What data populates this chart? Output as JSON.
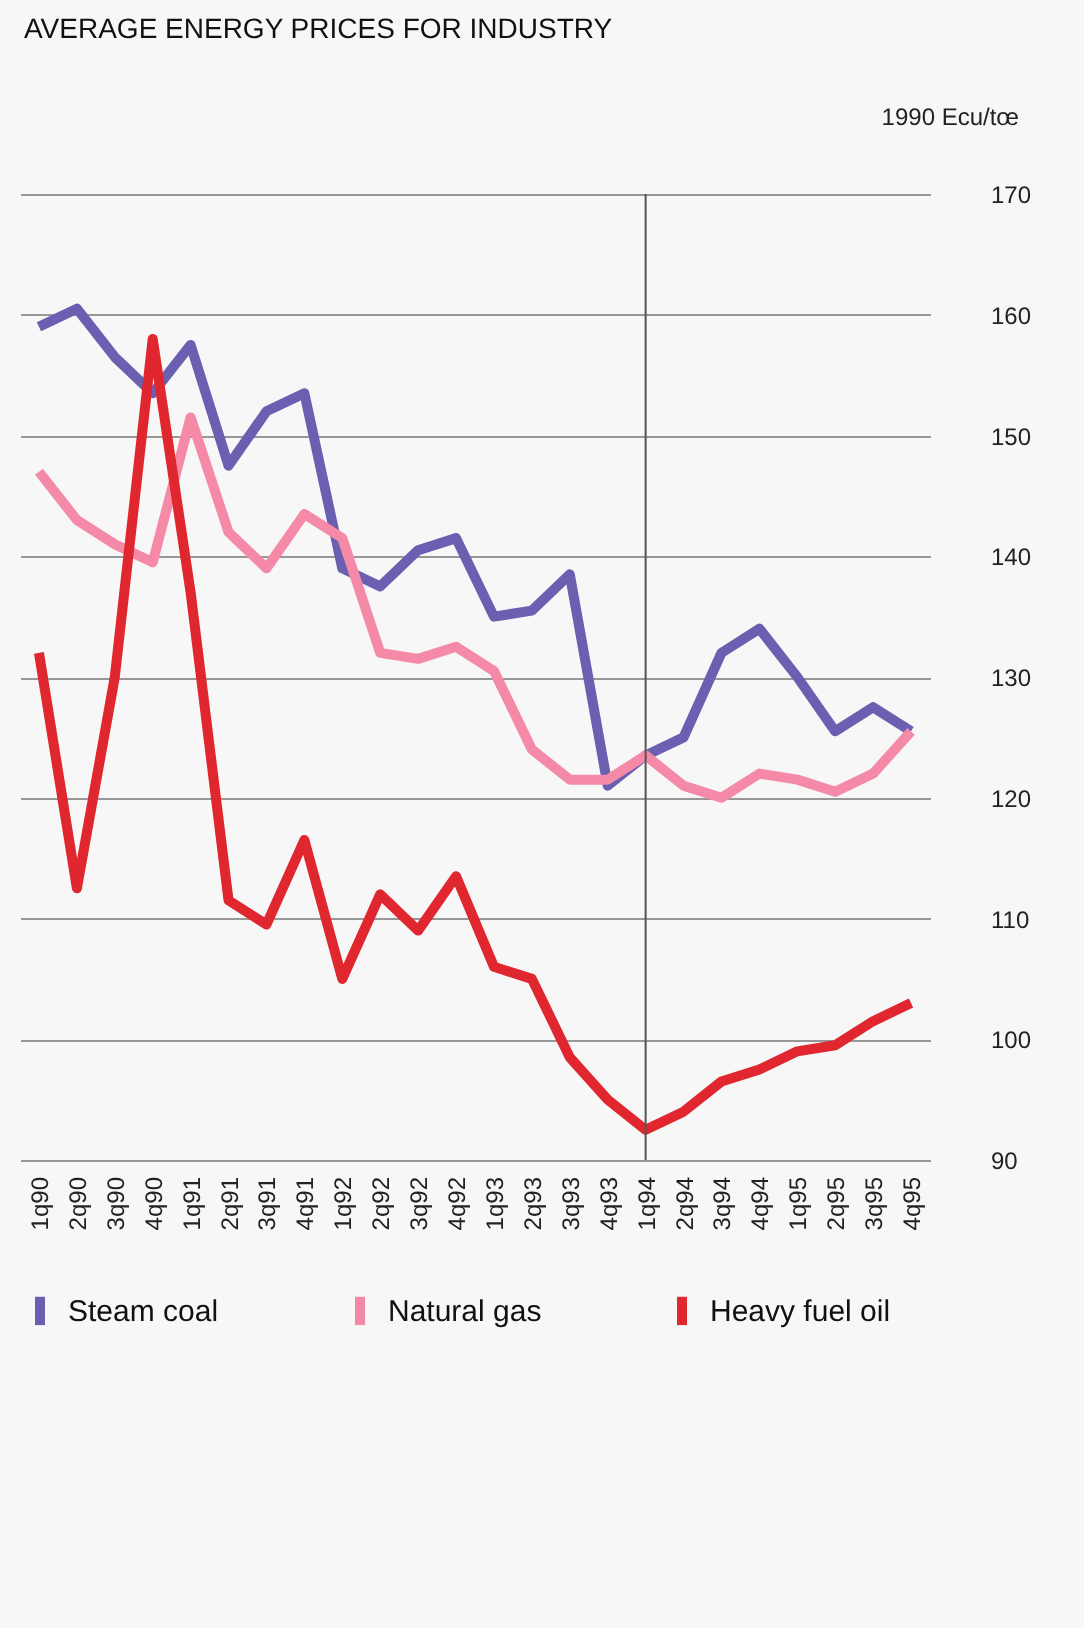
{
  "chart_data": {
    "type": "line",
    "title": "AVERAGE ENERGY PRICES FOR INDUSTRY",
    "ylabel": "1990 Ecu/tœ",
    "categories": [
      "1q90",
      "2q90",
      "3q90",
      "4q90",
      "1q91",
      "2q91",
      "3q91",
      "4q91",
      "1q92",
      "2q92",
      "3q92",
      "4q92",
      "1q93",
      "2q93",
      "3q93",
      "4q93",
      "1q94",
      "2q94",
      "3q94",
      "4q94",
      "1q95",
      "2q95",
      "3q95",
      "4q95"
    ],
    "series": [
      {
        "name": "Steam coal",
        "color": "#6a5fb0",
        "values": [
          159,
          160.5,
          156.5,
          153.5,
          157.5,
          147.5,
          152,
          153.5,
          139,
          137.5,
          140.5,
          141.5,
          135,
          135.5,
          138.5,
          121,
          123.5,
          125,
          132,
          134,
          130,
          125.5,
          127.5,
          125.5
        ]
      },
      {
        "name": "Natural gas",
        "color": "#f48aa8",
        "values": [
          147,
          143,
          141,
          139.5,
          151.5,
          142,
          139,
          143.5,
          141.5,
          132,
          131.5,
          132.5,
          130.5,
          124,
          121.5,
          121.5,
          123.5,
          121,
          120,
          122,
          121.5,
          120.5,
          122,
          125.5
        ]
      },
      {
        "name": "Heavy fuel oil",
        "color": "#e0262e",
        "values": [
          132,
          112.5,
          130,
          158,
          137,
          111.5,
          109.5,
          116.5,
          105,
          112,
          109,
          113.5,
          106,
          105,
          98.5,
          95,
          92.5,
          94,
          96.5,
          97.5,
          99,
          99.5,
          101.5,
          103
        ]
      }
    ],
    "ylim": [
      90,
      170
    ],
    "yticks": [
      90,
      100,
      110,
      120,
      130,
      140,
      150,
      160,
      170
    ],
    "grid": "y",
    "legend": "bottom",
    "ref_lines": [
      {
        "axis": "x",
        "value": "1q94",
        "color": "#555555"
      }
    ]
  }
}
